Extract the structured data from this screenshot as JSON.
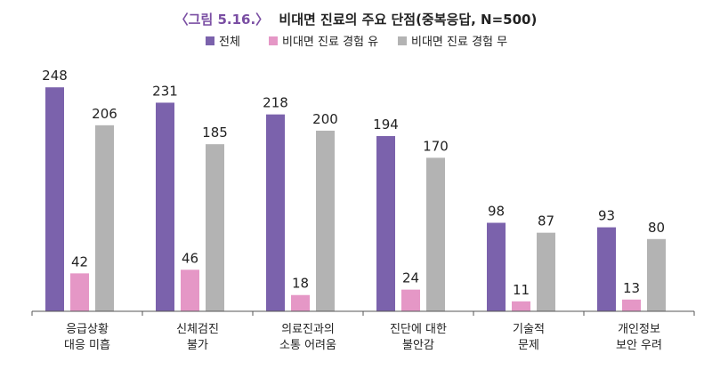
{
  "chart_data": {
    "type": "bar",
    "title_prefix": "〈그림 5.16.〉",
    "title_main": "비대면 진료의 주요 단점(중복응답, N=500)",
    "xlabel": "",
    "ylabel": "",
    "ylim": [
      0,
      260
    ],
    "grid": false,
    "legend_position": "top-center",
    "categories": [
      [
        "응급상황",
        "대응 미흡"
      ],
      [
        "신체검진",
        "불가"
      ],
      [
        "의료진과의",
        "소통 어려움"
      ],
      [
        "진단에 대한",
        "불안감"
      ],
      [
        "기술적",
        "문제"
      ],
      [
        "개인정보",
        "보안 우려"
      ]
    ],
    "series": [
      {
        "name": "전체",
        "color": "#7b62ac",
        "values": [
          248,
          231,
          218,
          194,
          98,
          93
        ]
      },
      {
        "name": "비대면 진료 경험 유",
        "color": "#e597c6",
        "values": [
          42,
          46,
          18,
          24,
          11,
          13
        ]
      },
      {
        "name": "비대면 진료 경험 무",
        "color": "#b3b3b3",
        "values": [
          206,
          185,
          200,
          170,
          87,
          80
        ]
      }
    ],
    "colors": {
      "title_prefix": "#7a4ea3",
      "title_main": "#222222",
      "axis": "#555555",
      "label": "#222222"
    }
  }
}
